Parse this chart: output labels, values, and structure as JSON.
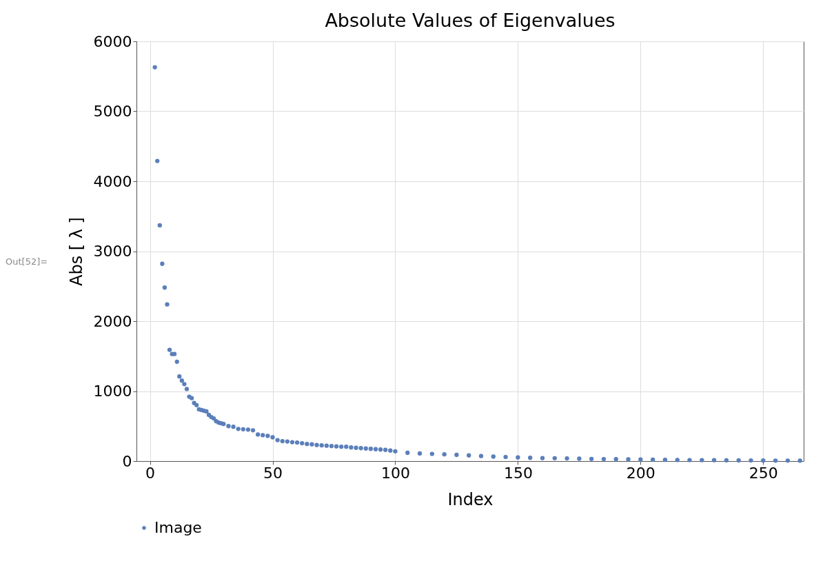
{
  "chart_data": {
    "type": "scatter",
    "title": "Absolute Values of Eigenvalues",
    "xlabel": "Index",
    "ylabel": "Abs [ λ ]",
    "annotations": [
      "Out[52]="
    ],
    "x": [
      2,
      3,
      4,
      5,
      6,
      7,
      8,
      9,
      10,
      11,
      12,
      13,
      14,
      15,
      16,
      17,
      18,
      19,
      20,
      21,
      22,
      23,
      24,
      25,
      26,
      27,
      28,
      29,
      30,
      32,
      34,
      36,
      38,
      40,
      42,
      44,
      46,
      48,
      50,
      52,
      54,
      56,
      58,
      60,
      62,
      64,
      66,
      68,
      70,
      72,
      74,
      76,
      78,
      80,
      82,
      84,
      86,
      88,
      90,
      92,
      94,
      96,
      98,
      100,
      105,
      110,
      115,
      120,
      125,
      130,
      135,
      140,
      145,
      150,
      155,
      160,
      165,
      170,
      175,
      180,
      185,
      190,
      195,
      200,
      205,
      210,
      215,
      220,
      225,
      230,
      235,
      240,
      245,
      250,
      255,
      260,
      265
    ],
    "series": [
      {
        "name": "Image",
        "color": "#5b7fba",
        "values": [
          5630,
          4290,
          3370,
          2820,
          2480,
          2240,
          1590,
          1530,
          1530,
          1420,
          1210,
          1150,
          1100,
          1030,
          920,
          900,
          830,
          800,
          740,
          730,
          720,
          710,
          660,
          630,
          610,
          570,
          550,
          540,
          530,
          500,
          490,
          460,
          455,
          450,
          440,
          380,
          370,
          360,
          340,
          300,
          285,
          280,
          270,
          265,
          255,
          245,
          240,
          230,
          225,
          220,
          215,
          210,
          205,
          205,
          195,
          190,
          185,
          180,
          175,
          170,
          165,
          160,
          150,
          140,
          118,
          109,
          103,
          97,
          89,
          81,
          72,
          64,
          58,
          52,
          47,
          43,
          41,
          39,
          35,
          31,
          29,
          27,
          25,
          23,
          20,
          18,
          16,
          14,
          13,
          12,
          11,
          10,
          9,
          8,
          7,
          7,
          6
        ]
      }
    ],
    "xlim": [
      -5.5,
      266.5
    ],
    "ylim": [
      0,
      6000
    ],
    "xticks": [
      0,
      50,
      100,
      150,
      200,
      250
    ],
    "yticks": [
      0,
      1000,
      2000,
      3000,
      4000,
      5000,
      6000
    ],
    "grid": true,
    "legend": "bottom",
    "marker": "circle"
  }
}
